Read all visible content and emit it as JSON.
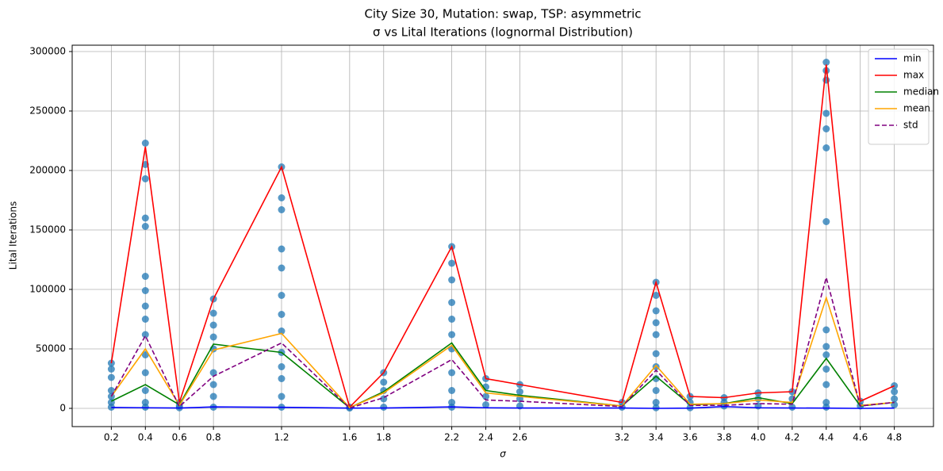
{
  "chart_data": {
    "type": "line",
    "title": "City Size 30, Mutation: swap, TSP: asymmetric",
    "subtitle": "σ vs Lital Iterations (lognormal Distribution)",
    "xlabel": "σ",
    "ylabel": "Lital Iterations",
    "x": [
      0.2,
      0.4,
      0.6,
      0.8,
      1.2,
      1.6,
      1.8,
      2.2,
      2.4,
      2.6,
      3.2,
      3.4,
      3.6,
      3.8,
      4.0,
      4.2,
      4.4,
      4.6,
      4.8
    ],
    "series": [
      {
        "name": "min",
        "color": "#0000ff",
        "linestyle": "solid",
        "values": [
          800,
          500,
          300,
          1200,
          900,
          200,
          300,
          1200,
          500,
          300,
          300,
          0,
          200,
          1500,
          500,
          300,
          200,
          0,
          200
        ]
      },
      {
        "name": "max",
        "color": "#ff0000",
        "linestyle": "solid",
        "values": [
          38000,
          220000,
          5000,
          92000,
          203000,
          1000,
          30000,
          136000,
          25000,
          20000,
          5000,
          106000,
          10000,
          9000,
          13000,
          14000,
          289000,
          6000,
          19000
        ]
      },
      {
        "name": "median",
        "color": "#008000",
        "linestyle": "solid",
        "values": [
          6000,
          20000,
          3000,
          54000,
          47000,
          500,
          14000,
          55000,
          15000,
          11000,
          2000,
          27000,
          3000,
          4000,
          9000,
          4000,
          42000,
          2000,
          5000
        ]
      },
      {
        "name": "mean",
        "color": "#ffa500",
        "linestyle": "solid",
        "values": [
          10000,
          50000,
          2500,
          49000,
          63000,
          600,
          13000,
          53000,
          13000,
          10000,
          2000,
          36000,
          3500,
          4000,
          7000,
          5000,
          93000,
          2500,
          5000
        ]
      },
      {
        "name": "std",
        "color": "#800080",
        "linestyle": "dashed",
        "values": [
          10000,
          61000,
          1500,
          27000,
          55000,
          300,
          9000,
          41000,
          7000,
          6000,
          1500,
          32000,
          2500,
          2500,
          4000,
          3500,
          110000,
          2000,
          5000
        ]
      }
    ],
    "points_color": "#1f77b4",
    "points": [
      {
        "x": 0.2,
        "y": [
          38000,
          33000,
          26000,
          15000,
          10000,
          5000,
          1000
        ]
      },
      {
        "x": 0.4,
        "y": [
          223000,
          205000,
          193000,
          160000,
          153000,
          111000,
          99000,
          86000,
          75000,
          62000,
          45000,
          30000,
          15000,
          5000,
          1000
        ]
      },
      {
        "x": 0.6,
        "y": [
          5000,
          2000,
          500
        ]
      },
      {
        "x": 0.8,
        "y": [
          92000,
          80000,
          70000,
          60000,
          50000,
          30000,
          20000,
          10000,
          1000
        ]
      },
      {
        "x": 1.2,
        "y": [
          203000,
          177000,
          167000,
          134000,
          118000,
          95000,
          79000,
          65000,
          47000,
          35000,
          25000,
          10000,
          1000
        ]
      },
      {
        "x": 1.6,
        "y": [
          1000,
          300
        ]
      },
      {
        "x": 1.8,
        "y": [
          30000,
          22000,
          15000,
          8000,
          1000
        ]
      },
      {
        "x": 2.2,
        "y": [
          136000,
          122000,
          108000,
          89000,
          75000,
          62000,
          50000,
          30000,
          15000,
          5000,
          1000
        ]
      },
      {
        "x": 2.4,
        "y": [
          25000,
          18000,
          10000,
          3000
        ]
      },
      {
        "x": 2.6,
        "y": [
          20000,
          14000,
          8000,
          2000
        ]
      },
      {
        "x": 3.2,
        "y": [
          5000,
          1000
        ]
      },
      {
        "x": 3.4,
        "y": [
          106000,
          95000,
          82000,
          72000,
          62000,
          46000,
          35000,
          25000,
          15000,
          5000,
          500
        ]
      },
      {
        "x": 3.6,
        "y": [
          10000,
          5000,
          500
        ]
      },
      {
        "x": 3.8,
        "y": [
          9000,
          5000,
          2000
        ]
      },
      {
        "x": 4.0,
        "y": [
          13000,
          8000,
          2000
        ]
      },
      {
        "x": 4.2,
        "y": [
          14000,
          8000,
          1000
        ]
      },
      {
        "x": 4.4,
        "y": [
          291000,
          284000,
          276000,
          248000,
          235000,
          219000,
          157000,
          66000,
          52000,
          45000,
          33000,
          20000,
          5000,
          1000
        ]
      },
      {
        "x": 4.6,
        "y": [
          6000,
          2000
        ]
      },
      {
        "x": 4.8,
        "y": [
          19000,
          14000,
          8000,
          3000
        ]
      }
    ],
    "xlim": [
      -0.03,
      5.03
    ],
    "xticks": [
      0.2,
      0.4,
      0.6,
      0.8,
      1.2,
      1.6,
      1.8,
      2.2,
      2.4,
      2.6,
      3.2,
      3.4,
      3.6,
      3.8,
      {
        "value": 4,
        "label": "4.0"
      },
      4.2,
      4.4,
      4.6,
      4.8
    ],
    "ylim": [
      -15333,
      305333
    ],
    "yticks": [
      0,
      50000,
      100000,
      150000,
      200000,
      250000,
      300000
    ],
    "grid": true,
    "legend": "upper right"
  }
}
